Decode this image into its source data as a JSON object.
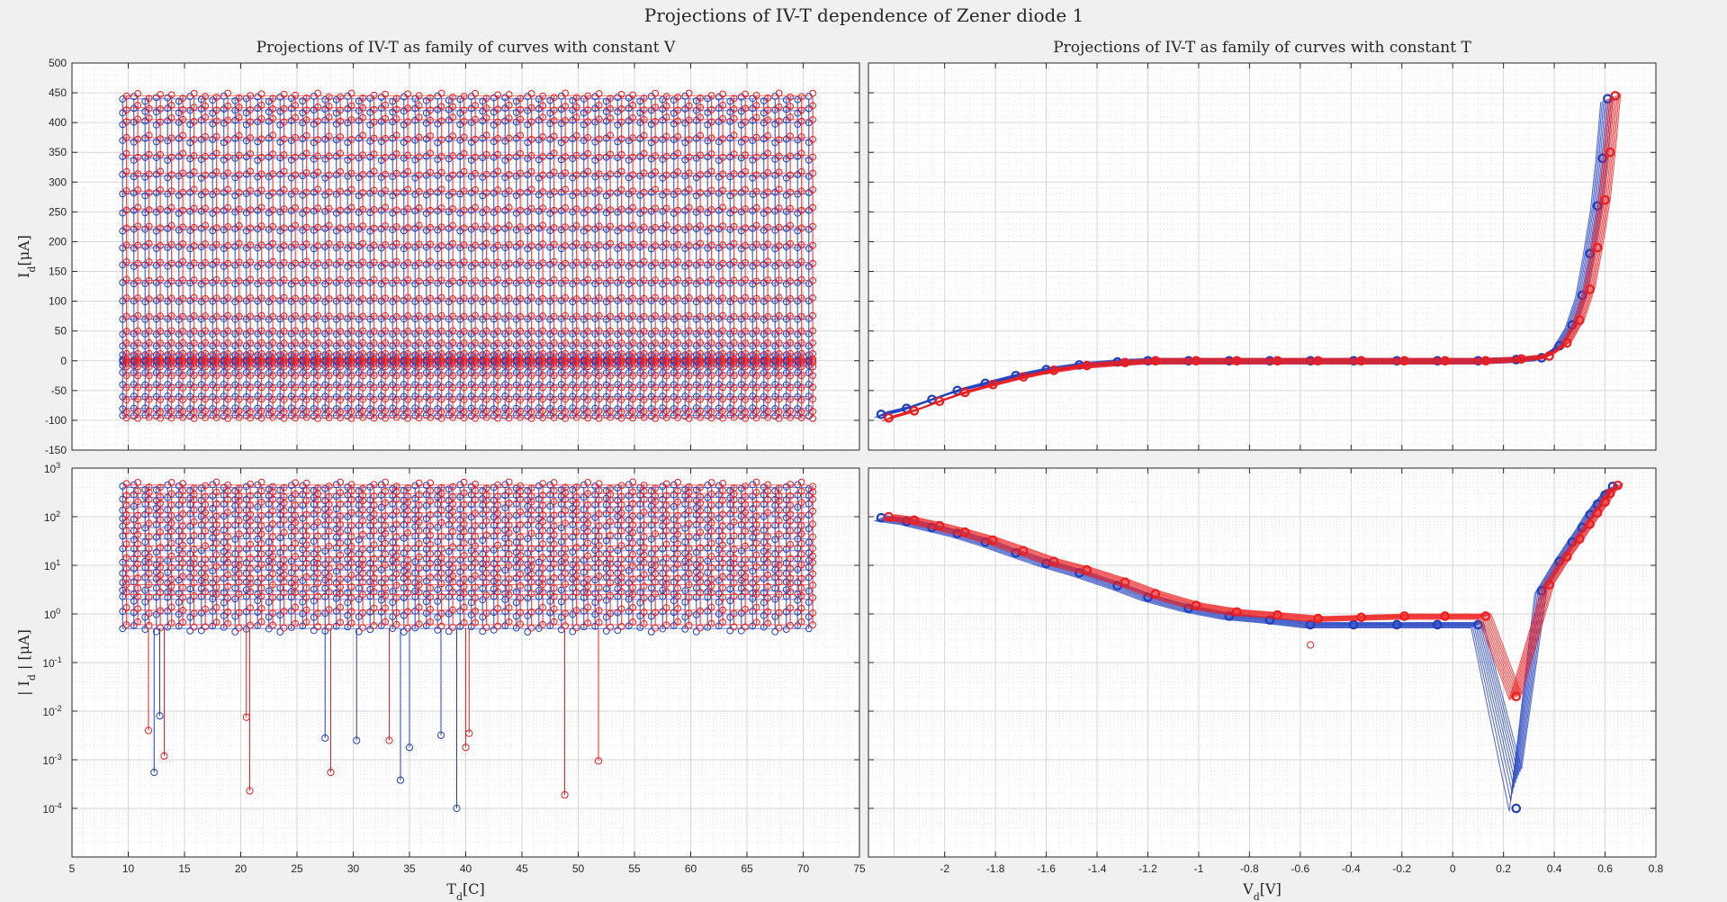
{
  "figure_title": "Projections of IV-T dependence of Zener diode 1",
  "colors": {
    "figure_bg": "#f0f0f0",
    "axes_bg": "#ffffff",
    "grid": "#dcdcdc",
    "series_blue": "#1f3fbf",
    "series_red": "#ee1c1c"
  },
  "chart_data": [
    {
      "id": "top-left",
      "type": "scatter",
      "title": "Projections of IV-T as family of curves with constant V",
      "xlabel": "",
      "ylabel": "I_d[μA]",
      "xlim": [
        5,
        75
      ],
      "ylim": [
        -150,
        500
      ],
      "yscale": "linear",
      "xticks": [],
      "yticks": [
        -150,
        -100,
        -50,
        0,
        50,
        100,
        150,
        200,
        250,
        300,
        350,
        400,
        450,
        500
      ],
      "ytick_labels": [
        "-150",
        "-100",
        "-50",
        "0",
        "50",
        "100",
        "150",
        "200",
        "250",
        "300",
        "350",
        "400",
        "450",
        "500"
      ],
      "grid": true,
      "series": [
        {
          "name": "blue",
          "color": "#1f3fbf",
          "x_range": [
            9.5,
            70.5
          ],
          "y_levels": [
            -92,
            -80,
            -60,
            -40,
            -20,
            -8,
            -2,
            0,
            2,
            10,
            25,
            45,
            70,
            100,
            130,
            160,
            190,
            220,
            250,
            280,
            310,
            340,
            370,
            400,
            420,
            440
          ]
        },
        {
          "name": "red",
          "color": "#ee1c1c",
          "x_range": [
            9.5,
            70.5
          ],
          "y_levels": [
            -96,
            -85,
            -65,
            -45,
            -25,
            -10,
            -3,
            0,
            3,
            12,
            30,
            50,
            75,
            105,
            135,
            165,
            195,
            225,
            255,
            285,
            315,
            345,
            375,
            405,
            425,
            445
          ]
        }
      ]
    },
    {
      "id": "top-right",
      "type": "line",
      "title": "Projections of IV-T as family of curves with constant T",
      "xlabel": "",
      "ylabel": "",
      "xlim": [
        -2.3,
        0.8
      ],
      "ylim": [
        -150,
        500
      ],
      "yscale": "linear",
      "xticks": [],
      "yticks": [],
      "grid": true,
      "series": [
        {
          "name": "blue",
          "color": "#1f3fbf",
          "x": [
            -2.25,
            -2.15,
            -2.05,
            -1.95,
            -1.84,
            -1.72,
            -1.6,
            -1.47,
            -1.32,
            -1.2,
            -1.04,
            -0.88,
            -0.72,
            -0.56,
            -0.39,
            -0.22,
            -0.06,
            0.1,
            0.25,
            0.35,
            0.42,
            0.47,
            0.51,
            0.54,
            0.57,
            0.59,
            0.61
          ],
          "y": [
            -90,
            -80,
            -65,
            -50,
            -38,
            -25,
            -15,
            -7,
            -2,
            0,
            0,
            0,
            0,
            0,
            0,
            0,
            0,
            0,
            2,
            5,
            25,
            60,
            110,
            180,
            260,
            340,
            440
          ]
        },
        {
          "name": "red",
          "color": "#ee1c1c",
          "x": [
            -2.22,
            -2.12,
            -2.02,
            -1.92,
            -1.81,
            -1.69,
            -1.57,
            -1.44,
            -1.29,
            -1.17,
            -1.01,
            -0.85,
            -0.69,
            -0.53,
            -0.36,
            -0.19,
            -0.03,
            0.13,
            0.27,
            0.38,
            0.45,
            0.5,
            0.54,
            0.57,
            0.6,
            0.62,
            0.64
          ],
          "y": [
            -96,
            -84,
            -68,
            -53,
            -40,
            -27,
            -16,
            -8,
            -3,
            0,
            0,
            0,
            0,
            0,
            0,
            0,
            0,
            0,
            3,
            8,
            30,
            68,
            120,
            190,
            270,
            350,
            445
          ]
        }
      ]
    },
    {
      "id": "bottom-left",
      "type": "scatter",
      "title": "",
      "xlabel": "T_d[C]",
      "ylabel": "| I_d | [μA]",
      "xlim": [
        5,
        75
      ],
      "ylim": [
        1e-05,
        1000
      ],
      "yscale": "log",
      "xticks": [
        5,
        10,
        15,
        20,
        25,
        30,
        35,
        40,
        45,
        50,
        55,
        60,
        65,
        70,
        75
      ],
      "xtick_labels": [
        "5",
        "10",
        "15",
        "20",
        "25",
        "30",
        "35",
        "40",
        "45",
        "50",
        "55",
        "60",
        "65",
        "70",
        "75"
      ],
      "ytick_exponents": [
        -4,
        -3,
        -2,
        -1,
        0,
        1,
        2,
        3
      ],
      "ytick_base": "10",
      "grid": true,
      "series": [
        {
          "name": "blue",
          "color": "#1f3fbf",
          "x_range": [
            9.5,
            70.5
          ],
          "y_levels": [
            0.5,
            1,
            2,
            3,
            5,
            8,
            12,
            20,
            35,
            60,
            100,
            160,
            250,
            400
          ]
        },
        {
          "name": "red",
          "color": "#ee1c1c",
          "x_range": [
            9.5,
            70.5
          ],
          "y_levels": [
            0.6,
            1.2,
            2.5,
            4,
            6,
            10,
            15,
            25,
            45,
            75,
            120,
            200,
            300,
            450
          ]
        }
      ],
      "outliers": [
        {
          "x": 12.3,
          "y": 0.00055,
          "color": "blue"
        },
        {
          "x": 39.2,
          "y": 0.0001,
          "color": "blue"
        },
        {
          "x": 34.2,
          "y": 0.00038,
          "color": "blue"
        },
        {
          "x": 20.8,
          "y": 0.00023,
          "color": "red"
        },
        {
          "x": 48.8,
          "y": 0.00019,
          "color": "red"
        },
        {
          "x": 28.0,
          "y": 0.00055,
          "color": "red"
        },
        {
          "x": 13.2,
          "y": 0.0012,
          "color": "red"
        },
        {
          "x": 51.8,
          "y": 0.00095,
          "color": "red"
        },
        {
          "x": 27.5,
          "y": 0.0028,
          "color": "blue"
        },
        {
          "x": 33.2,
          "y": 0.0025,
          "color": "red"
        },
        {
          "x": 30.3,
          "y": 0.0025,
          "color": "blue"
        },
        {
          "x": 35.0,
          "y": 0.0018,
          "color": "blue"
        },
        {
          "x": 37.8,
          "y": 0.0032,
          "color": "blue"
        },
        {
          "x": 40.0,
          "y": 0.0018,
          "color": "red"
        },
        {
          "x": 11.8,
          "y": 0.004,
          "color": "red"
        },
        {
          "x": 12.8,
          "y": 0.008,
          "color": "blue"
        },
        {
          "x": 20.5,
          "y": 0.0075,
          "color": "red"
        },
        {
          "x": 40.3,
          "y": 0.0035,
          "color": "red"
        }
      ]
    },
    {
      "id": "bottom-right",
      "type": "line",
      "title": "",
      "xlabel": "V_d[V]",
      "ylabel": "",
      "xlim": [
        -2.3,
        0.8
      ],
      "ylim": [
        1e-05,
        1000
      ],
      "yscale": "log",
      "xticks": [
        -2,
        -1.8,
        -1.6,
        -1.4,
        -1.2,
        -1,
        -0.8,
        -0.6,
        -0.4,
        -0.2,
        0,
        0.2,
        0.4,
        0.6,
        0.8
      ],
      "xtick_labels": [
        "-2",
        "-1.8",
        "-1.6",
        "-1.4",
        "-1.2",
        "-1",
        "-0.8",
        "-0.6",
        "-0.4",
        "-0.2",
        "0",
        "0.2",
        "0.4",
        "0.6",
        "0.8"
      ],
      "ytick_exponents": [],
      "grid": true,
      "series": [
        {
          "name": "blue",
          "color": "#1f3fbf",
          "x": [
            -2.25,
            -2.15,
            -2.05,
            -1.95,
            -1.84,
            -1.72,
            -1.6,
            -1.47,
            -1.32,
            -1.2,
            -1.04,
            -0.88,
            -0.72,
            -0.56,
            -0.39,
            -0.22,
            -0.06,
            0.1,
            0.25,
            0.35,
            0.42,
            0.47,
            0.51,
            0.54,
            0.57,
            0.6,
            0.63
          ],
          "y": [
            95,
            80,
            60,
            45,
            30,
            18,
            11,
            7,
            3.8,
            2.2,
            1.3,
            0.9,
            0.75,
            0.6,
            0.6,
            0.6,
            0.6,
            0.6,
            0.0001,
            3,
            12,
            30,
            60,
            110,
            180,
            280,
            420
          ]
        },
        {
          "name": "red",
          "color": "#ee1c1c",
          "x": [
            -2.22,
            -2.12,
            -2.02,
            -1.92,
            -1.81,
            -1.69,
            -1.57,
            -1.44,
            -1.29,
            -1.17,
            -1.01,
            -0.85,
            -0.69,
            -0.53,
            -0.36,
            -0.19,
            -0.03,
            0.13,
            0.25,
            0.38,
            0.45,
            0.5,
            0.54,
            0.57,
            0.6,
            0.62,
            0.65
          ],
          "y": [
            100,
            85,
            65,
            48,
            33,
            20,
            12,
            8,
            4.5,
            2.6,
            1.5,
            1.1,
            0.95,
            0.8,
            0.85,
            0.9,
            0.9,
            0.9,
            0.02,
            4,
            15,
            35,
            70,
            120,
            200,
            300,
            440
          ]
        }
      ],
      "outlier_points": [
        {
          "x": -0.56,
          "y": 0.23,
          "color": "red"
        }
      ]
    }
  ]
}
